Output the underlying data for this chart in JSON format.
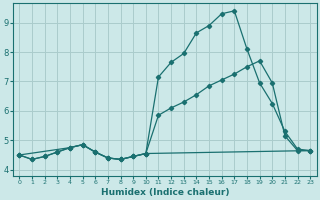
{
  "xlabel": "Humidex (Indice chaleur)",
  "xlim": [
    -0.5,
    23.5
  ],
  "ylim": [
    3.8,
    9.65
  ],
  "xticks": [
    0,
    1,
    2,
    3,
    4,
    5,
    6,
    7,
    8,
    9,
    10,
    11,
    12,
    13,
    14,
    15,
    16,
    17,
    18,
    19,
    20,
    21,
    22,
    23
  ],
  "yticks": [
    4,
    5,
    6,
    7,
    8,
    9
  ],
  "bg_color": "#cce8e8",
  "grid_color": "#aacccc",
  "line_color": "#1a7070",
  "series1_x": [
    0,
    1,
    2,
    3,
    4,
    5,
    6,
    7,
    8,
    9,
    10,
    11,
    12,
    13,
    14,
    15,
    16,
    17,
    18,
    19,
    20,
    21,
    22,
    23
  ],
  "series1_y": [
    4.5,
    4.35,
    4.45,
    4.6,
    4.75,
    4.85,
    4.6,
    4.4,
    4.35,
    4.45,
    4.55,
    7.15,
    7.65,
    7.95,
    8.65,
    8.9,
    9.3,
    9.4,
    8.1,
    6.95,
    6.25,
    5.3,
    4.7,
    4.65
  ],
  "series2_x": [
    0,
    1,
    2,
    3,
    4,
    5,
    6,
    7,
    8,
    9,
    10,
    11,
    12,
    13,
    14,
    15,
    16,
    17,
    18,
    19,
    20,
    21,
    22,
    23
  ],
  "series2_y": [
    4.5,
    4.35,
    4.45,
    4.6,
    4.75,
    4.85,
    4.6,
    4.4,
    4.35,
    4.45,
    4.55,
    5.85,
    6.1,
    6.3,
    6.55,
    6.85,
    7.05,
    7.25,
    7.5,
    7.7,
    6.95,
    5.15,
    4.65,
    4.65
  ],
  "series3_x": [
    0,
    4,
    5,
    6,
    7,
    8,
    9,
    10,
    23
  ],
  "series3_y": [
    4.5,
    4.75,
    4.85,
    4.6,
    4.4,
    4.35,
    4.45,
    4.55,
    4.65
  ]
}
